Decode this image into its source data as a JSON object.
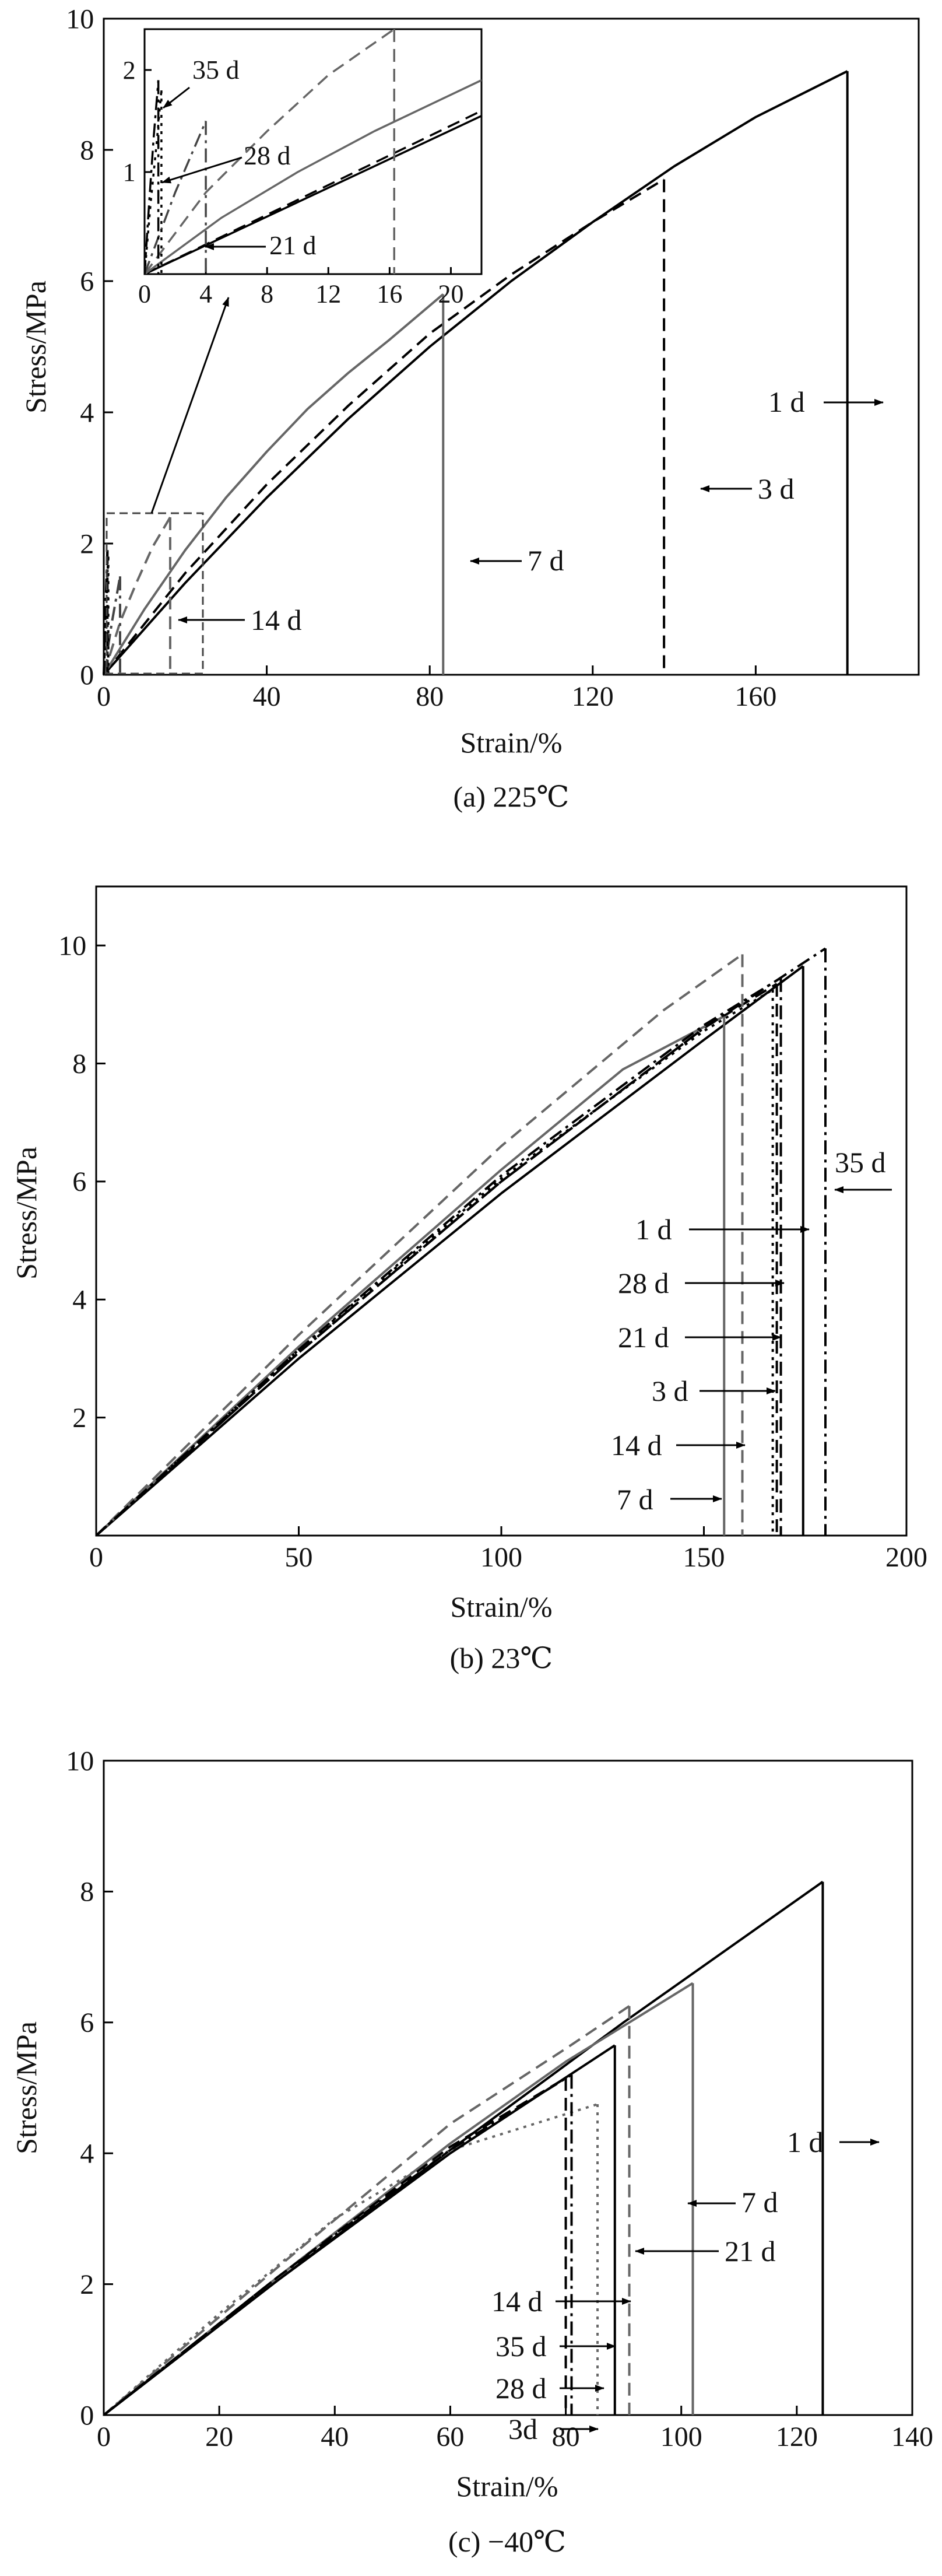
{
  "figure": {
    "panels": [
      {
        "caption": "(a) 225℃"
      },
      {
        "caption": "(b) 23℃"
      },
      {
        "caption": "(c) −40℃"
      }
    ]
  },
  "chart_data": [
    {
      "type": "line",
      "title": "(a) 225℃",
      "xlabel": "Strain/%",
      "ylabel": "Stress/MPa",
      "xlim": [
        0,
        200
      ],
      "ylim": [
        0,
        10
      ],
      "xticks": [
        0,
        40,
        80,
        120,
        160
      ],
      "yticks": [
        0,
        2,
        4,
        6,
        8,
        10
      ],
      "series": [
        {
          "name": "1 d",
          "color": "#000000",
          "dash": "solid",
          "break_strain": 182.5,
          "peak_stress": 9.2,
          "points": [
            [
              0,
              0
            ],
            [
              20,
              1.4
            ],
            [
              40,
              2.7
            ],
            [
              60,
              3.9
            ],
            [
              80,
              5.0
            ],
            [
              100,
              6.0
            ],
            [
              120,
              6.9
            ],
            [
              140,
              7.75
            ],
            [
              160,
              8.5
            ],
            [
              182.5,
              9.2
            ]
          ]
        },
        {
          "name": "3 d",
          "color": "#000000",
          "dash": "dashed",
          "break_strain": 137.5,
          "peak_stress": 7.55,
          "points": [
            [
              0,
              0
            ],
            [
              20,
              1.55
            ],
            [
              40,
              2.9
            ],
            [
              60,
              4.1
            ],
            [
              80,
              5.2
            ],
            [
              100,
              6.1
            ],
            [
              120,
              6.9
            ],
            [
              137.5,
              7.55
            ]
          ]
        },
        {
          "name": "7 d",
          "color": "#666666",
          "dash": "solid",
          "break_strain": 83.3,
          "peak_stress": 5.8,
          "points": [
            [
              0,
              0
            ],
            [
              10,
              1.0
            ],
            [
              20,
              1.9
            ],
            [
              30,
              2.7
            ],
            [
              40,
              3.4
            ],
            [
              50,
              4.05
            ],
            [
              60,
              4.6
            ],
            [
              70,
              5.1
            ],
            [
              83.3,
              5.8
            ]
          ]
        },
        {
          "name": "14 d",
          "color": "#666666",
          "dash": "dashed",
          "break_strain": 16.3,
          "peak_stress": 2.4,
          "points": [
            [
              0,
              0
            ],
            [
              4,
              0.8
            ],
            [
              8,
              1.4
            ],
            [
              12,
              1.95
            ],
            [
              16.3,
              2.4
            ]
          ]
        },
        {
          "name": "21 d",
          "color": "#444444",
          "dash": "dashdot",
          "break_strain": 4.0,
          "peak_stress": 1.5,
          "points": [
            [
              0,
              0
            ],
            [
              1,
              0.4
            ],
            [
              2,
              0.8
            ],
            [
              3,
              1.15
            ],
            [
              4,
              1.5
            ]
          ]
        },
        {
          "name": "28 d",
          "color": "#000000",
          "dash": "dotted",
          "break_strain": 1.1,
          "peak_stress": 1.8,
          "points": [
            [
              0,
              0
            ],
            [
              0.4,
              0.7
            ],
            [
              0.8,
              1.3
            ],
            [
              1.1,
              1.8
            ]
          ]
        },
        {
          "name": "35 d",
          "color": "#000000",
          "dash": "dashdot",
          "break_strain": 0.9,
          "peak_stress": 1.9,
          "points": [
            [
              0,
              0
            ],
            [
              0.3,
              0.7
            ],
            [
              0.6,
              1.35
            ],
            [
              0.9,
              1.9
            ]
          ]
        }
      ],
      "annotations": [
        "1 d",
        "3 d",
        "7 d",
        "14 d"
      ],
      "inset": {
        "xlim": [
          0,
          22
        ],
        "ylim": [
          0,
          2.4
        ],
        "xticks": [
          0,
          4,
          8,
          12,
          16,
          20
        ],
        "yticks": [
          1,
          2
        ],
        "annotations": [
          "35 d",
          "28 d",
          "21 d"
        ],
        "series": [
          {
            "name": "1 d",
            "color": "#000000",
            "dash": "solid",
            "points": [
              [
                0,
                0
              ],
              [
                22,
                1.55
              ]
            ]
          },
          {
            "name": "3 d",
            "color": "#000000",
            "dash": "dashed",
            "points": [
              [
                0,
                0
              ],
              [
                22,
                1.6
              ]
            ]
          },
          {
            "name": "7 d",
            "color": "#666666",
            "dash": "solid",
            "points": [
              [
                0,
                0
              ],
              [
                5,
                0.55
              ],
              [
                10,
                1.0
              ],
              [
                15,
                1.4
              ],
              [
                22,
                1.9
              ]
            ]
          },
          {
            "name": "14 d",
            "color": "#666666",
            "dash": "dashed",
            "points": [
              [
                0,
                0
              ],
              [
                4,
                0.8
              ],
              [
                8,
                1.4
              ],
              [
                12,
                1.95
              ],
              [
                16.3,
                2.4
              ]
            ]
          },
          {
            "name": "21 d",
            "color": "#444444",
            "dash": "dashdot",
            "points": [
              [
                0,
                0
              ],
              [
                1,
                0.4
              ],
              [
                2,
                0.8
              ],
              [
                3,
                1.15
              ],
              [
                4,
                1.5
              ]
            ]
          },
          {
            "name": "28 d",
            "color": "#000000",
            "dash": "dotted",
            "points": [
              [
                0,
                0
              ],
              [
                0.4,
                0.7
              ],
              [
                0.8,
                1.3
              ],
              [
                1.1,
                1.8
              ]
            ]
          },
          {
            "name": "35 d",
            "color": "#000000",
            "dash": "dashdot",
            "points": [
              [
                0,
                0
              ],
              [
                0.3,
                0.7
              ],
              [
                0.6,
                1.35
              ],
              [
                0.9,
                1.9
              ]
            ]
          }
        ]
      }
    },
    {
      "type": "line",
      "title": "(b) 23℃",
      "xlabel": "Strain/%",
      "ylabel": "Stress/MPa",
      "xlim": [
        0,
        200
      ],
      "ylim": [
        0,
        11
      ],
      "xticks": [
        0,
        50,
        100,
        150,
        200
      ],
      "yticks": [
        2,
        4,
        6,
        8,
        10
      ],
      "series": [
        {
          "name": "1 d",
          "color": "#000000",
          "dash": "solid",
          "break_strain": 174.5,
          "peak_stress": 9.65,
          "points": [
            [
              0,
              0
            ],
            [
              50,
              3.0
            ],
            [
              100,
              5.8
            ],
            [
              150,
              8.4
            ],
            [
              174.5,
              9.65
            ]
          ]
        },
        {
          "name": "3 d",
          "color": "#000000",
          "dash": "dashed",
          "break_strain": 168.0,
          "peak_stress": 9.35,
          "points": [
            [
              0,
              0
            ],
            [
              50,
              3.1
            ],
            [
              100,
              6.0
            ],
            [
              150,
              8.6
            ],
            [
              168,
              9.35
            ]
          ]
        },
        {
          "name": "7 d",
          "color": "#666666",
          "dash": "solid",
          "break_strain": 155.0,
          "peak_stress": 8.8,
          "points": [
            [
              0,
              0
            ],
            [
              50,
              3.2
            ],
            [
              100,
              6.2
            ],
            [
              130,
              7.9
            ],
            [
              155,
              8.8
            ]
          ]
        },
        {
          "name": "14 d",
          "color": "#666666",
          "dash": "dashed",
          "break_strain": 159.5,
          "peak_stress": 9.85,
          "points": [
            [
              0,
              0
            ],
            [
              50,
              3.4
            ],
            [
              100,
              6.6
            ],
            [
              140,
              8.9
            ],
            [
              159.5,
              9.85
            ]
          ]
        },
        {
          "name": "21 d",
          "color": "#000000",
          "dash": "dotted",
          "break_strain": 167.0,
          "peak_stress": 9.25,
          "points": [
            [
              0,
              0
            ],
            [
              50,
              3.15
            ],
            [
              100,
              6.05
            ],
            [
              150,
              8.55
            ],
            [
              167,
              9.25
            ]
          ]
        },
        {
          "name": "28 d",
          "color": "#000000",
          "dash": "dashdot",
          "break_strain": 169.0,
          "peak_stress": 9.45,
          "points": [
            [
              0,
              0
            ],
            [
              50,
              3.15
            ],
            [
              100,
              6.1
            ],
            [
              150,
              8.65
            ],
            [
              169,
              9.45
            ]
          ]
        },
        {
          "name": "35 d",
          "color": "#000000",
          "dash": "dashdot",
          "break_strain": 180.0,
          "peak_stress": 9.95,
          "points": [
            [
              0,
              0
            ],
            [
              50,
              3.1
            ],
            [
              100,
              6.0
            ],
            [
              150,
              8.6
            ],
            [
              180,
              9.95
            ]
          ]
        }
      ],
      "annotations": [
        "35 d",
        "1 d",
        "28 d",
        "21 d",
        "3 d",
        "14 d",
        "7 d"
      ]
    },
    {
      "type": "line",
      "title": "(c) −40℃",
      "xlabel": "Strain/%",
      "ylabel": "Stress/MPa",
      "xlim": [
        0,
        140
      ],
      "ylim": [
        0,
        10
      ],
      "xticks": [
        0,
        20,
        40,
        60,
        80,
        100,
        120,
        140
      ],
      "yticks": [
        0,
        2,
        4,
        6,
        8,
        10
      ],
      "series": [
        {
          "name": "1 d",
          "color": "#000000",
          "dash": "solid",
          "break_strain": 124.5,
          "peak_stress": 8.15,
          "points": [
            [
              0,
              0
            ],
            [
              30,
              2.05
            ],
            [
              60,
              4.05
            ],
            [
              90,
              6.0
            ],
            [
              124.5,
              8.15
            ]
          ]
        },
        {
          "name": "7 d",
          "color": "#666666",
          "dash": "solid",
          "break_strain": 102.0,
          "peak_stress": 6.6,
          "points": [
            [
              0,
              0
            ],
            [
              30,
              2.1
            ],
            [
              60,
              4.15
            ],
            [
              80,
              5.4
            ],
            [
              102,
              6.6
            ]
          ]
        },
        {
          "name": "21 d",
          "color": "#666666",
          "dash": "dashed",
          "break_strain": 91.0,
          "peak_stress": 6.25,
          "points": [
            [
              0,
              0
            ],
            [
              30,
              2.25
            ],
            [
              60,
              4.45
            ],
            [
              80,
              5.6
            ],
            [
              91,
              6.25
            ]
          ]
        },
        {
          "name": "14 d",
          "color": "#666666",
          "dash": "dotted",
          "break_strain": 85.5,
          "peak_stress": 4.75,
          "points": [
            [
              0,
              0
            ],
            [
              20,
              1.55
            ],
            [
              40,
              3.0
            ],
            [
              60,
              4.05
            ],
            [
              85.5,
              4.75
            ]
          ]
        },
        {
          "name": "35 d",
          "color": "#000000",
          "dash": "solid",
          "break_strain": 88.5,
          "peak_stress": 5.65,
          "points": [
            [
              0,
              0
            ],
            [
              30,
              2.05
            ],
            [
              60,
              4.0
            ],
            [
              88.5,
              5.65
            ]
          ]
        },
        {
          "name": "28 d",
          "color": "#000000",
          "dash": "dashdot",
          "break_strain": 81.0,
          "peak_stress": 5.2,
          "points": [
            [
              0,
              0
            ],
            [
              30,
              2.1
            ],
            [
              60,
              4.05
            ],
            [
              81,
              5.2
            ]
          ]
        },
        {
          "name": "3d",
          "color": "#000000",
          "dash": "dashed",
          "break_strain": 80.0,
          "peak_stress": 5.15,
          "points": [
            [
              0,
              0
            ],
            [
              30,
              2.1
            ],
            [
              60,
              4.1
            ],
            [
              80,
              5.15
            ]
          ]
        }
      ],
      "annotations": [
        "1 d",
        "7 d",
        "21 d",
        "14 d",
        "35 d",
        "28 d",
        "3d"
      ]
    }
  ]
}
